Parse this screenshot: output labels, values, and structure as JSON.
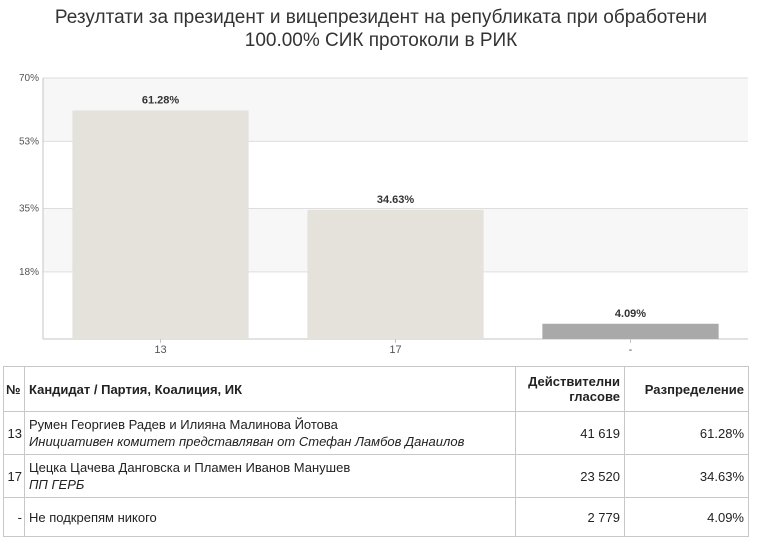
{
  "title_line1": "Резултати за президент и вицепрезидент на републиката при обработени",
  "title_line2": "100.00% СИК протоколи в РИК",
  "chart_data": {
    "type": "bar",
    "categories": [
      "13",
      "17",
      "-"
    ],
    "values": [
      61.28,
      34.63,
      4.09
    ],
    "data_labels": [
      "61.28%",
      "34.63%",
      "4.09%"
    ],
    "ylim": [
      0,
      70
    ],
    "yticks": [
      18,
      35,
      53,
      70
    ],
    "ytick_labels": [
      "18%",
      "35%",
      "53%",
      "70%"
    ],
    "grid": true,
    "bar_colors": [
      "#e5e2dc",
      "#e5e2dc",
      "#a9a9a9"
    ]
  },
  "table": {
    "headers": {
      "no": "№",
      "candidate": "Кандидат / Партия, Коалиция, ИК",
      "votes": "Действителни гласове",
      "dist": "Разпределение"
    },
    "rows": [
      {
        "no": "13",
        "name": "Румен Георгиев Радев и Илияна Малинова Йотова",
        "party": "Инициативен комитет представляван от Стефан Ламбов Данаилов",
        "votes": "41 619",
        "dist": "61.28%"
      },
      {
        "no": "17",
        "name": "Цецка Цачева Данговска и Пламен Иванов Манушев",
        "party": "ПП ГЕРБ",
        "votes": "23 520",
        "dist": "34.63%"
      },
      {
        "no": "-",
        "name": "Не подкрепям никого",
        "votes": "2 779",
        "dist": "4.09%"
      }
    ]
  }
}
